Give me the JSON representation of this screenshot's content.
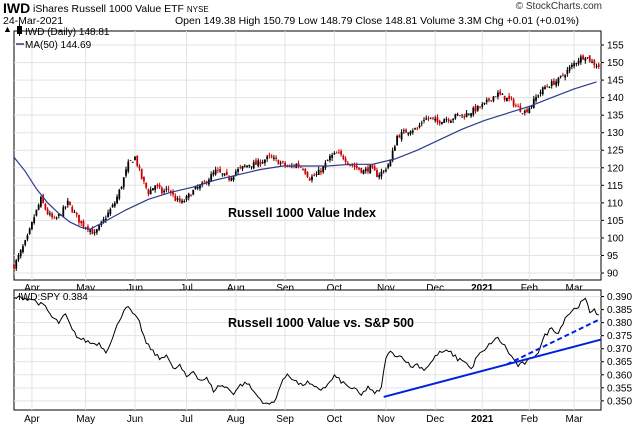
{
  "header": {
    "symbol": "IWD",
    "description": "iShares Russell 1000 Value ETF",
    "exchange": "NYSE",
    "date": "24-Mar-2021",
    "ohlc": "Open 149.38  High 150.79  Low 148.79  Close 148.81  Volume 3.3M  Chg +0.01 (+0.01%)",
    "brand": "© StockCharts.com",
    "up_arrow": "▲"
  },
  "colors": {
    "up": "#000000",
    "down": "#cc0000",
    "ma": "#2e3a8c",
    "trend": "#0020e0",
    "ratio": "#000000"
  },
  "chart_data": [
    {
      "type": "ohlc",
      "title": "IWD (Daily) 148.81",
      "legend": [
        {
          "label": "IWD (Daily) 148.81",
          "icon": "candle-icon"
        },
        {
          "label": "MA(50) 144.69",
          "icon": "line-icon"
        }
      ],
      "annotation": "Russell 1000 Value Index",
      "ylim": [
        88,
        159
      ],
      "y_ticks": [
        90,
        95,
        100,
        105,
        110,
        115,
        120,
        125,
        130,
        135,
        140,
        145,
        150,
        155
      ],
      "x_labels": [
        "Apr",
        "May",
        "Jun",
        "Jul",
        "Aug",
        "Sep",
        "Oct",
        "Nov",
        "Dec",
        "2021",
        "Feb",
        "Mar"
      ],
      "x_label_days": [
        8,
        32,
        54,
        77,
        99,
        121,
        143,
        166,
        188,
        209,
        230,
        250
      ],
      "x_range_days": [
        0,
        262
      ],
      "close": [
        [
          0,
          92
        ],
        [
          3,
          96
        ],
        [
          6,
          100
        ],
        [
          9,
          106
        ],
        [
          12,
          111
        ],
        [
          15,
          107
        ],
        [
          18,
          105
        ],
        [
          21,
          107
        ],
        [
          24,
          110
        ],
        [
          27,
          107
        ],
        [
          30,
          104
        ],
        [
          33,
          103
        ],
        [
          36,
          101
        ],
        [
          39,
          104
        ],
        [
          42,
          107
        ],
        [
          45,
          110
        ],
        [
          48,
          115
        ],
        [
          51,
          121
        ],
        [
          54,
          123
        ],
        [
          57,
          117
        ],
        [
          60,
          113
        ],
        [
          63,
          115
        ],
        [
          66,
          113
        ],
        [
          69,
          114
        ],
        [
          72,
          111
        ],
        [
          75,
          110
        ],
        [
          78,
          112
        ],
        [
          81,
          114
        ],
        [
          84,
          115
        ],
        [
          87,
          117
        ],
        [
          90,
          119
        ],
        [
          93,
          118
        ],
        [
          96,
          117
        ],
        [
          99,
          119
        ],
        [
          102,
          120
        ],
        [
          105,
          121
        ],
        [
          108,
          121
        ],
        [
          111,
          122
        ],
        [
          114,
          123
        ],
        [
          117,
          122
        ],
        [
          120,
          121
        ],
        [
          123,
          120
        ],
        [
          126,
          121
        ],
        [
          129,
          120
        ],
        [
          132,
          117
        ],
        [
          135,
          118
        ],
        [
          138,
          120
        ],
        [
          141,
          123
        ],
        [
          144,
          124
        ],
        [
          147,
          123
        ],
        [
          150,
          121
        ],
        [
          153,
          120
        ],
        [
          156,
          119
        ],
        [
          159,
          120
        ],
        [
          162,
          118
        ],
        [
          165,
          119
        ],
        [
          168,
          122
        ],
        [
          171,
          129
        ],
        [
          174,
          130
        ],
        [
          177,
          131
        ],
        [
          180,
          131
        ],
        [
          183,
          134
        ],
        [
          186,
          134
        ],
        [
          189,
          133
        ],
        [
          192,
          134
        ],
        [
          195,
          134
        ],
        [
          198,
          135
        ],
        [
          201,
          135
        ],
        [
          204,
          136
        ],
        [
          207,
          137
        ],
        [
          210,
          138
        ],
        [
          213,
          140
        ],
        [
          216,
          141
        ],
        [
          219,
          140
        ],
        [
          222,
          139
        ],
        [
          225,
          137
        ],
        [
          228,
          136
        ],
        [
          231,
          138
        ],
        [
          234,
          141
        ],
        [
          237,
          143
        ],
        [
          240,
          144
        ],
        [
          243,
          145
        ],
        [
          246,
          147
        ],
        [
          249,
          149
        ],
        [
          252,
          151
        ],
        [
          255,
          152
        ],
        [
          258,
          150
        ],
        [
          261,
          149
        ]
      ],
      "ma50": [
        [
          0,
          123
        ],
        [
          5,
          119
        ],
        [
          10,
          114
        ],
        [
          15,
          110
        ],
        [
          20,
          107
        ],
        [
          25,
          104.5
        ],
        [
          30,
          103
        ],
        [
          34,
          102.5
        ],
        [
          40,
          104.5
        ],
        [
          50,
          108
        ],
        [
          60,
          111
        ],
        [
          70,
          113
        ],
        [
          80,
          114.5
        ],
        [
          90,
          116.5
        ],
        [
          100,
          118
        ],
        [
          110,
          119.5
        ],
        [
          120,
          120.5
        ],
        [
          130,
          120.5
        ],
        [
          140,
          120.5
        ],
        [
          150,
          121
        ],
        [
          160,
          121
        ],
        [
          170,
          122.5
        ],
        [
          180,
          125
        ],
        [
          190,
          128
        ],
        [
          200,
          131
        ],
        [
          210,
          133.5
        ],
        [
          220,
          135.5
        ],
        [
          230,
          137.5
        ],
        [
          240,
          140
        ],
        [
          250,
          142.5
        ],
        [
          260,
          144.5
        ]
      ]
    },
    {
      "type": "line",
      "title": "IWD:SPY 0.384",
      "annotation": "Russell 1000 Value vs. S&P 500",
      "ylim": [
        0.3465,
        0.3925
      ],
      "y_ticks": [
        0.35,
        0.355,
        0.36,
        0.365,
        0.37,
        0.375,
        0.38,
        0.385,
        0.39
      ],
      "y_tick_labels": [
        "0.350",
        "0.355",
        "0.360",
        "0.365",
        "0.370",
        "0.375",
        "0.380",
        "0.385",
        "0.390"
      ],
      "x_labels": [
        "Apr",
        "May",
        "Jun",
        "Jul",
        "Aug",
        "Sep",
        "Oct",
        "Nov",
        "Dec",
        "2021",
        "Feb",
        "Mar"
      ],
      "x_label_days": [
        8,
        32,
        54,
        77,
        99,
        121,
        143,
        166,
        188,
        209,
        230,
        250
      ],
      "x_range_days": [
        0,
        262
      ],
      "series": [
        [
          0,
          0.3895
        ],
        [
          4,
          0.3895
        ],
        [
          8,
          0.389
        ],
        [
          11,
          0.3875
        ],
        [
          14,
          0.386
        ],
        [
          17,
          0.382
        ],
        [
          20,
          0.38
        ],
        [
          23,
          0.383
        ],
        [
          26,
          0.377
        ],
        [
          29,
          0.374
        ],
        [
          32,
          0.373
        ],
        [
          35,
          0.372
        ],
        [
          38,
          0.372
        ],
        [
          41,
          0.369
        ],
        [
          44,
          0.374
        ],
        [
          47,
          0.381
        ],
        [
          50,
          0.3865
        ],
        [
          53,
          0.3835
        ],
        [
          56,
          0.38
        ],
        [
          59,
          0.372
        ],
        [
          62,
          0.369
        ],
        [
          65,
          0.366
        ],
        [
          68,
          0.368
        ],
        [
          71,
          0.362
        ],
        [
          74,
          0.3635
        ],
        [
          77,
          0.359
        ],
        [
          80,
          0.3615
        ],
        [
          83,
          0.358
        ],
        [
          86,
          0.3585
        ],
        [
          89,
          0.354
        ],
        [
          92,
          0.356
        ],
        [
          95,
          0.355
        ],
        [
          98,
          0.353
        ],
        [
          101,
          0.356
        ],
        [
          104,
          0.357
        ],
        [
          107,
          0.3535
        ],
        [
          110,
          0.3505
        ],
        [
          113,
          0.3485
        ],
        [
          116,
          0.3495
        ],
        [
          119,
          0.356
        ],
        [
          122,
          0.3605
        ],
        [
          125,
          0.358
        ],
        [
          128,
          0.356
        ],
        [
          131,
          0.357
        ],
        [
          134,
          0.355
        ],
        [
          137,
          0.3545
        ],
        [
          140,
          0.356
        ],
        [
          143,
          0.3595
        ],
        [
          146,
          0.3575
        ],
        [
          149,
          0.3555
        ],
        [
          152,
          0.3545
        ],
        [
          155,
          0.352
        ],
        [
          158,
          0.3555
        ],
        [
          161,
          0.3525
        ],
        [
          164,
          0.355
        ],
        [
          166,
          0.367
        ],
        [
          168,
          0.3685
        ],
        [
          171,
          0.3675
        ],
        [
          174,
          0.3665
        ],
        [
          177,
          0.363
        ],
        [
          180,
          0.364
        ],
        [
          183,
          0.362
        ],
        [
          186,
          0.3645
        ],
        [
          189,
          0.368
        ],
        [
          192,
          0.369
        ],
        [
          195,
          0.3685
        ],
        [
          198,
          0.366
        ],
        [
          201,
          0.3655
        ],
        [
          204,
          0.362
        ],
        [
          207,
          0.3675
        ],
        [
          210,
          0.369
        ],
        [
          213,
          0.3725
        ],
        [
          216,
          0.374
        ],
        [
          219,
          0.371
        ],
        [
          222,
          0.367
        ],
        [
          225,
          0.3635
        ],
        [
          228,
          0.3645
        ],
        [
          231,
          0.366
        ],
        [
          234,
          0.369
        ],
        [
          237,
          0.375
        ],
        [
          240,
          0.378
        ],
        [
          243,
          0.376
        ],
        [
          246,
          0.382
        ],
        [
          249,
          0.3845
        ],
        [
          252,
          0.3865
        ],
        [
          255,
          0.389
        ],
        [
          257,
          0.384
        ],
        [
          259,
          0.3855
        ],
        [
          261,
          0.3825
        ]
      ],
      "trendlines": [
        {
          "style": "solid",
          "points": [
            [
              165,
              0.3515
            ],
            [
              262,
              0.3735
            ]
          ]
        },
        {
          "style": "dashed",
          "points": [
            [
              220,
              0.364
            ],
            [
              262,
              0.3815
            ]
          ]
        }
      ]
    }
  ]
}
